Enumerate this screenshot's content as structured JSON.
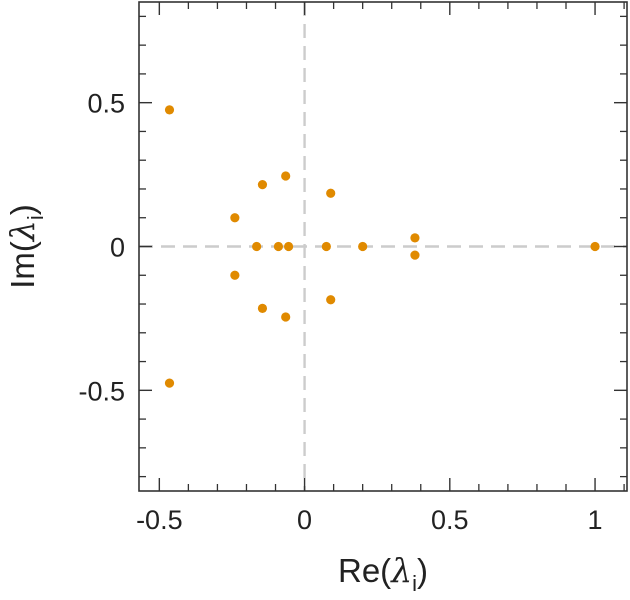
{
  "chart_data": {
    "type": "scatter",
    "xlabel": {
      "prefix": "Re(",
      "symbol": "λ",
      "subscript": "i",
      "suffix": ")"
    },
    "ylabel": {
      "prefix": "Im(",
      "symbol": "λ",
      "subscript": "i",
      "suffix": ")"
    },
    "xlim": [
      -0.57,
      1.11
    ],
    "ylim": [
      -0.85,
      0.85
    ],
    "x_ticks": [
      {
        "value": -0.5,
        "label": "-0.5"
      },
      {
        "value": 0,
        "label": "0"
      },
      {
        "value": 0.5,
        "label": "0.5"
      },
      {
        "value": 1,
        "label": "1"
      }
    ],
    "y_ticks": [
      {
        "value": 0.5,
        "label": "0.5"
      },
      {
        "value": 0,
        "label": "0"
      },
      {
        "value": -0.5,
        "label": "-0.5"
      }
    ],
    "x_minor_step": 0.1,
    "y_minor_step": 0.1,
    "zero_lines": true,
    "grid": false,
    "marker_color": "#e08a00",
    "zero_line_color": "#cccccc",
    "points": [
      {
        "x": -0.465,
        "y": 0.475
      },
      {
        "x": -0.465,
        "y": -0.475
      },
      {
        "x": -0.24,
        "y": 0.1
      },
      {
        "x": -0.24,
        "y": -0.1
      },
      {
        "x": -0.145,
        "y": 0.215
      },
      {
        "x": -0.145,
        "y": -0.215
      },
      {
        "x": -0.065,
        "y": 0.245
      },
      {
        "x": -0.065,
        "y": -0.245
      },
      {
        "x": -0.165,
        "y": 0.0
      },
      {
        "x": -0.09,
        "y": 0.0
      },
      {
        "x": -0.055,
        "y": 0.0
      },
      {
        "x": 0.075,
        "y": 0.0
      },
      {
        "x": 0.09,
        "y": 0.185
      },
      {
        "x": 0.09,
        "y": -0.185
      },
      {
        "x": 0.2,
        "y": 0.0
      },
      {
        "x": 0.38,
        "y": 0.03
      },
      {
        "x": 0.38,
        "y": -0.03
      },
      {
        "x": 1.0,
        "y": 0.0
      }
    ]
  }
}
